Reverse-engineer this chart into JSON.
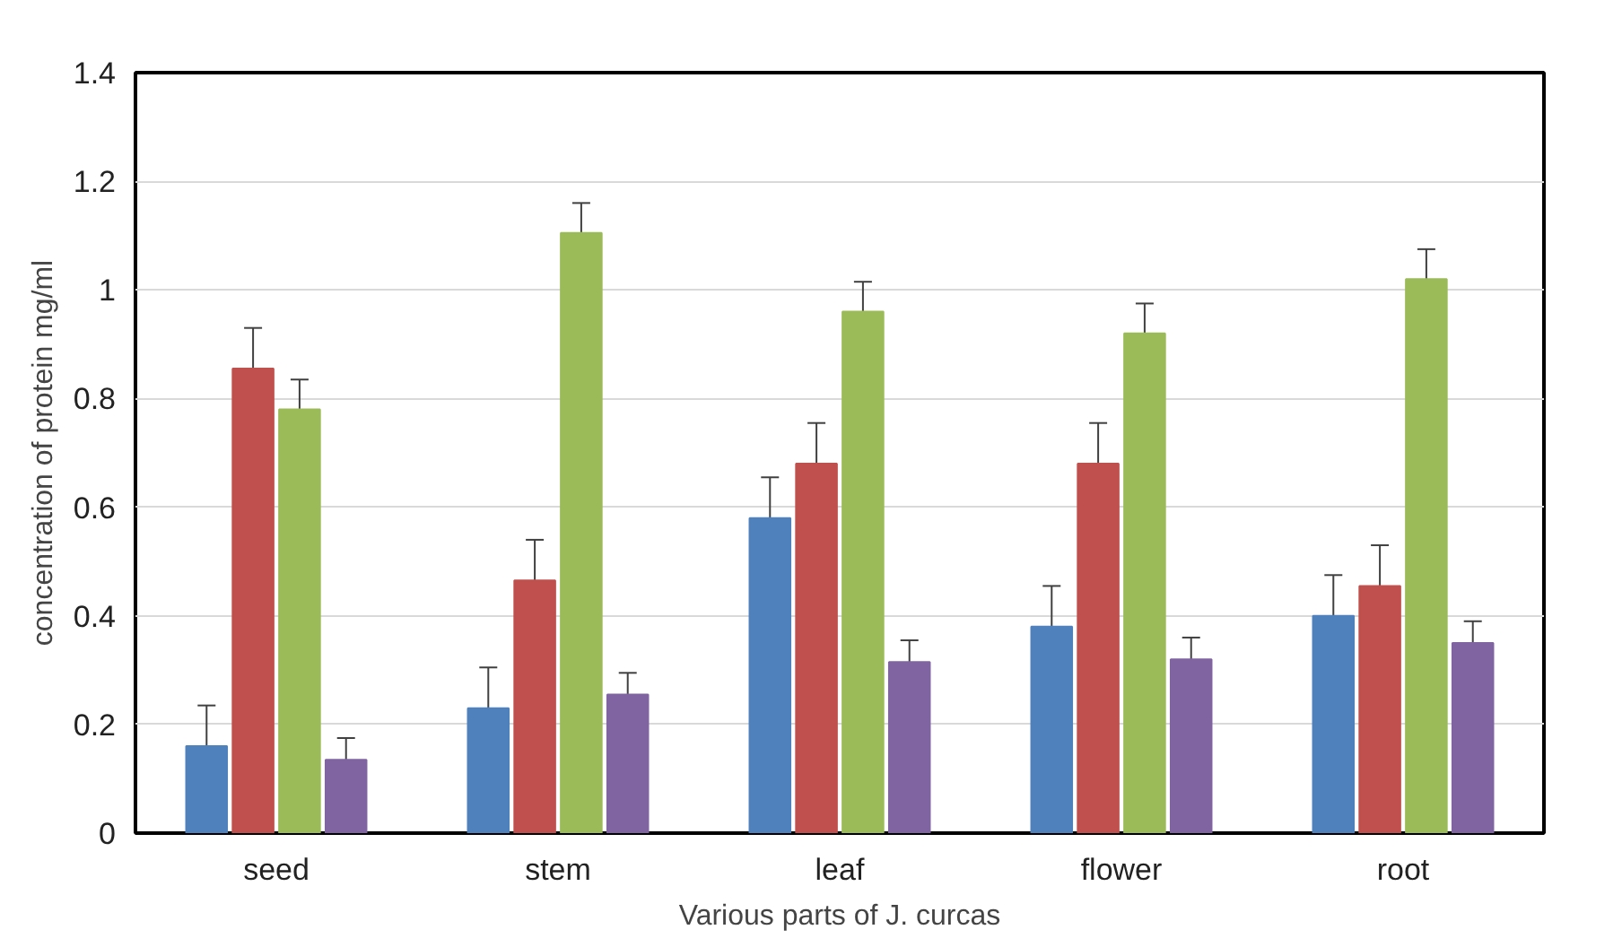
{
  "chart_data": {
    "type": "bar",
    "xlabel": "Various parts of J. curcas",
    "ylabel": "concentration of protein mg/ml",
    "categories": [
      "seed",
      "stem",
      "leaf",
      "flower",
      "root"
    ],
    "series": [
      {
        "color": "#4f81bd",
        "values": [
          0.16,
          0.23,
          0.58,
          0.38,
          0.4
        ],
        "errors": [
          0.075,
          0.075,
          0.075,
          0.075,
          0.075
        ]
      },
      {
        "color": "#c0504d",
        "values": [
          0.855,
          0.465,
          0.68,
          0.68,
          0.455
        ],
        "errors": [
          0.075,
          0.075,
          0.075,
          0.075,
          0.075
        ]
      },
      {
        "color": "#9bbb59",
        "values": [
          0.78,
          1.105,
          0.96,
          0.92,
          1.02
        ],
        "errors": [
          0.055,
          0.055,
          0.055,
          0.055,
          0.055
        ]
      },
      {
        "color": "#8064a2",
        "values": [
          0.135,
          0.255,
          0.315,
          0.32,
          0.35
        ],
        "errors": [
          0.04,
          0.04,
          0.04,
          0.04,
          0.04
        ]
      }
    ],
    "ylim": [
      0,
      1.4
    ],
    "yticks": [
      0,
      0.2,
      0.4,
      0.6,
      0.8,
      1,
      1.2,
      1.4
    ],
    "grid": "y"
  }
}
